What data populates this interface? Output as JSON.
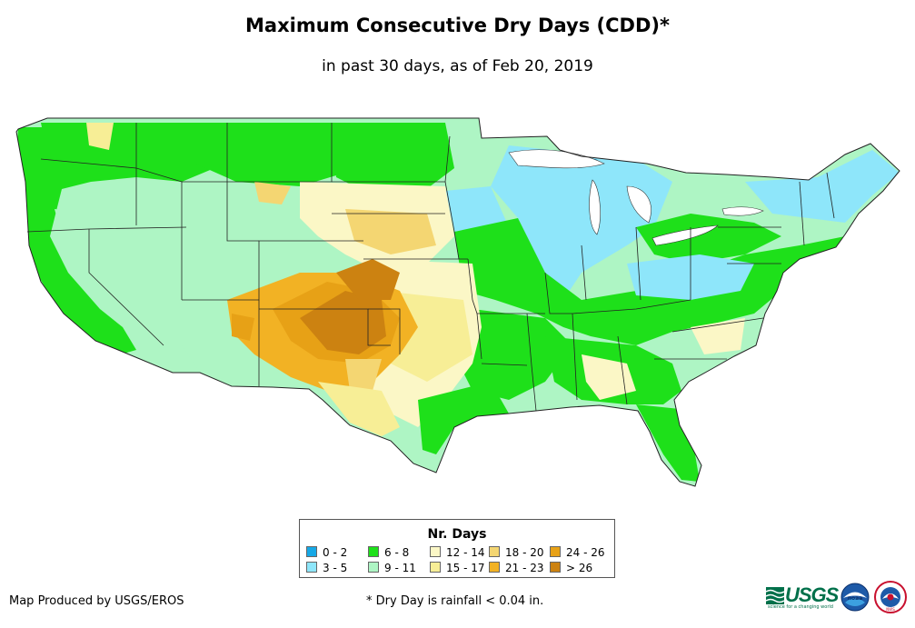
{
  "title": "Maximum Consecutive Dry Days (CDD)*",
  "subtitle": "in past 30 days, as of Feb 20, 2019",
  "legend": {
    "title": "Nr. Days",
    "items": [
      {
        "label": "0 - 2",
        "color": "#16a8e6"
      },
      {
        "label": "3 - 5",
        "color": "#8ee6fa"
      },
      {
        "label": "6 - 8",
        "color": "#1ee01a"
      },
      {
        "label": "9 - 11",
        "color": "#aef5c4"
      },
      {
        "label": "12 - 14",
        "color": "#fbf7c6"
      },
      {
        "label": "15 - 17",
        "color": "#f7ee96"
      },
      {
        "label": "18 - 20",
        "color": "#f4d672"
      },
      {
        "label": "21 - 23",
        "color": "#f2b224"
      },
      {
        "label": "24 - 26",
        "color": "#e7a116"
      },
      {
        "label": "> 26",
        "color": "#cc8211"
      }
    ]
  },
  "credit": "Map Produced by USGS/EROS",
  "footnote": "* Dry Day is rainfall < 0.04 in.",
  "logos": {
    "usgs_text": "USGS",
    "usgs_tagline": "science for a changing world",
    "noaa_text": "noaa",
    "nws_text": "NWS"
  },
  "colors": {
    "green": "#1ee01a",
    "light_green": "#aef5c4",
    "cyan": "#8ee6fa",
    "blue": "#16a8e6",
    "pale_yellow": "#fbf7c6",
    "yellow": "#f7ee96",
    "gold": "#f4d672",
    "orange": "#f2b224",
    "dark_orange": "#e7a116",
    "brown": "#cc8211"
  }
}
